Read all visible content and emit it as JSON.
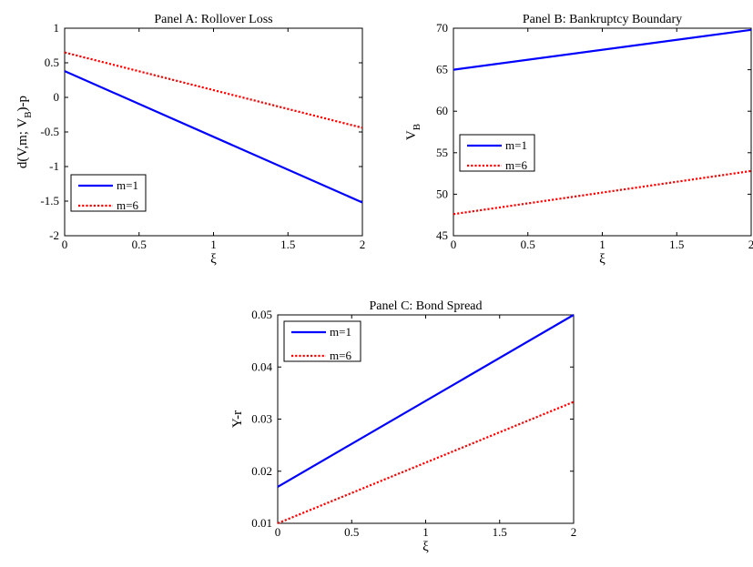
{
  "chart_data": [
    {
      "id": "A",
      "type": "line",
      "title": "Panel A: Rollover Loss",
      "xlabel": "ξ",
      "ylabel": "d(V,m; V_B)-p",
      "ylabel_parts": {
        "pre": "d(V,m; V",
        "sub": "B",
        "post": ")-p"
      },
      "xlim": [
        0,
        2
      ],
      "ylim": [
        -2,
        1
      ],
      "xticks": [
        0,
        0.5,
        1,
        1.5,
        2
      ],
      "xtick_labels": [
        "0",
        "0.5",
        "1",
        "1.5",
        "2"
      ],
      "yticks": [
        -2,
        -1.5,
        -1,
        -0.5,
        0,
        0.5,
        1
      ],
      "ytick_labels": [
        "-2",
        "-1.5",
        "-1",
        "-0.5",
        "0",
        "0.5",
        "1"
      ],
      "legend": "bottom-left",
      "series": [
        {
          "name": "m=1",
          "color": "#0000ff",
          "style": "solid",
          "x": [
            0,
            2
          ],
          "y": [
            0.38,
            -1.52
          ]
        },
        {
          "name": "m=6",
          "color": "#ff0000",
          "style": "dotted",
          "x": [
            0,
            2
          ],
          "y": [
            0.65,
            -0.44
          ]
        }
      ]
    },
    {
      "id": "B",
      "type": "line",
      "title": "Panel B: Bankruptcy Boundary",
      "xlabel": "ξ",
      "ylabel": "V_B",
      "ylabel_parts": {
        "pre": "V",
        "sub": "B",
        "post": ""
      },
      "xlim": [
        0,
        2
      ],
      "ylim": [
        45,
        70
      ],
      "xticks": [
        0,
        0.5,
        1,
        1.5,
        2
      ],
      "xtick_labels": [
        "0",
        "0.5",
        "1",
        "1.5",
        "2"
      ],
      "yticks": [
        45,
        50,
        55,
        60,
        65,
        70
      ],
      "ytick_labels": [
        "45",
        "50",
        "55",
        "60",
        "65",
        "70"
      ],
      "legend": "middle-left",
      "series": [
        {
          "name": "m=1",
          "color": "#0000ff",
          "style": "solid",
          "x": [
            0,
            2
          ],
          "y": [
            65.0,
            69.8
          ]
        },
        {
          "name": "m=6",
          "color": "#ff0000",
          "style": "dotted",
          "x": [
            0,
            2
          ],
          "y": [
            47.6,
            52.8
          ]
        }
      ]
    },
    {
      "id": "C",
      "type": "line",
      "title": "Panel C: Bond Spread",
      "xlabel": "ξ",
      "ylabel": "Y-r",
      "ylabel_parts": {
        "pre": "Y-r",
        "sub": "",
        "post": ""
      },
      "xlim": [
        0,
        2
      ],
      "ylim": [
        0.01,
        0.05
      ],
      "xticks": [
        0,
        0.5,
        1,
        1.5,
        2
      ],
      "xtick_labels": [
        "0",
        "0.5",
        "1",
        "1.5",
        "2"
      ],
      "yticks": [
        0.01,
        0.02,
        0.03,
        0.04,
        0.05
      ],
      "ytick_labels": [
        "0.01",
        "0.02",
        "0.03",
        "0.04",
        "0.05"
      ],
      "legend": "top-left",
      "series": [
        {
          "name": "m=1",
          "color": "#0000ff",
          "style": "solid",
          "x": [
            0,
            2
          ],
          "y": [
            0.017,
            0.05
          ]
        },
        {
          "name": "m=6",
          "color": "#ff0000",
          "style": "dotted",
          "x": [
            0,
            2
          ],
          "y": [
            0.01,
            0.0333
          ]
        }
      ]
    }
  ]
}
